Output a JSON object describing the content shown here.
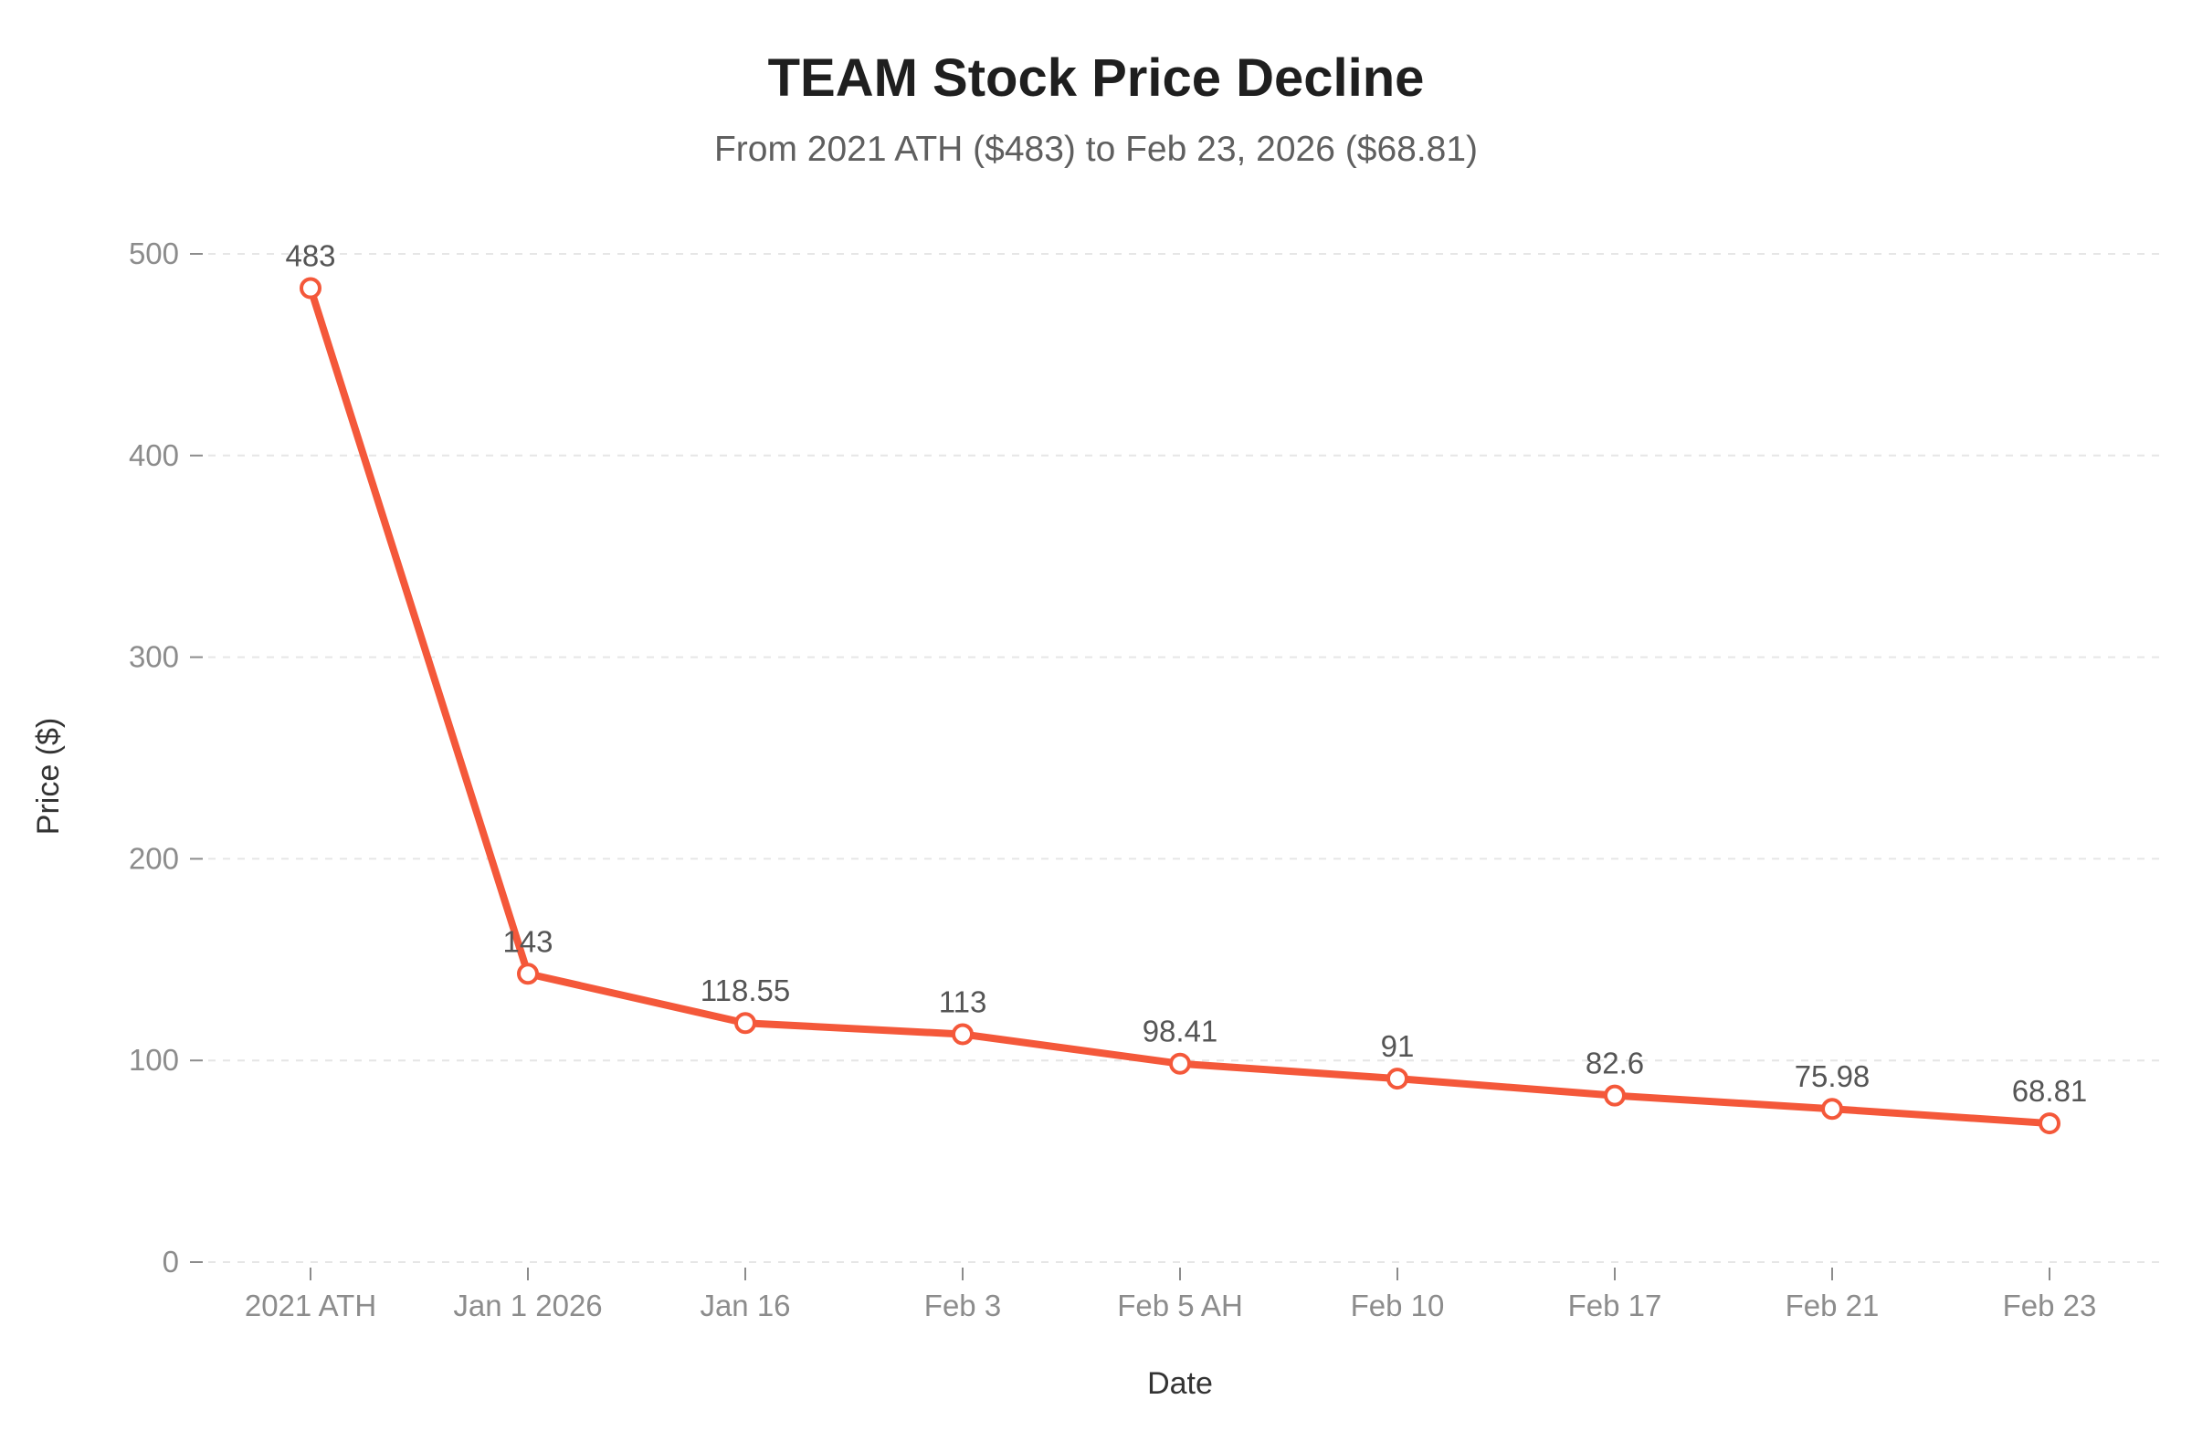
{
  "chart_data": {
    "type": "line",
    "title": "TEAM Stock Price Decline",
    "subtitle": "From 2021 ATH ($483) to Feb 23, 2026 ($68.81)",
    "xlabel": "Date",
    "ylabel": "Price ($)",
    "categories": [
      "2021 ATH",
      "Jan 1 2026",
      "Jan 16",
      "Feb 3",
      "Feb 5 AH",
      "Feb 10",
      "Feb 17",
      "Feb 21",
      "Feb 23"
    ],
    "values": [
      483,
      143,
      118.55,
      113,
      98.41,
      91,
      82.6,
      75.98,
      68.81
    ],
    "data_labels": [
      "483",
      "143",
      "118.55",
      "113",
      "98.41",
      "91",
      "82.6",
      "75.98",
      "68.81"
    ],
    "ylim": [
      0,
      500
    ],
    "yticks": [
      0,
      100,
      200,
      300,
      400,
      500
    ],
    "ytick_labels": [
      "0",
      "100",
      "200",
      "300",
      "400",
      "500"
    ],
    "grid": true,
    "line_color": "#f4583a",
    "marker_fill": "#ffffff"
  }
}
